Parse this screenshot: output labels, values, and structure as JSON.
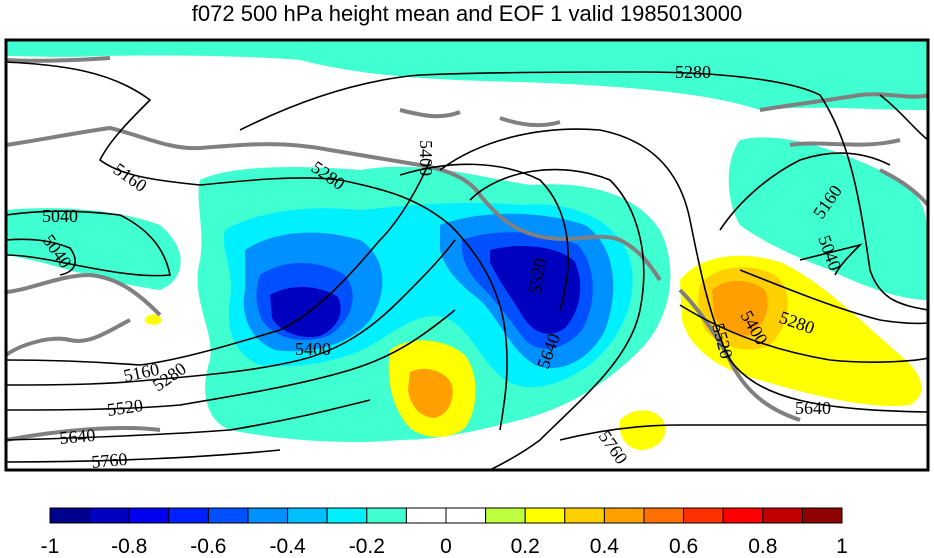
{
  "title": "f072 500 hPa height mean and EOF 1 valid 1985013000",
  "colorbar": {
    "colors": [
      "#00008f",
      "#0000bf",
      "#0000ef",
      "#0020ff",
      "#0050ff",
      "#0090ff",
      "#00c0ff",
      "#00f0ff",
      "#40ffd0",
      "#ffffff",
      "#ffffff",
      "#c0ff40",
      "#ffff00",
      "#ffd000",
      "#ffa000",
      "#ff7000",
      "#ff3000",
      "#ff0000",
      "#c00000",
      "#8f0000"
    ],
    "tick_labels": [
      "-1",
      "-0.8",
      "-0.6",
      "-0.4",
      "-0.2",
      "0",
      "0.2",
      "0.4",
      "0.6",
      "0.8",
      "1"
    ]
  },
  "contour_labels": [
    "5280",
    "5160",
    "5040",
    "5280",
    "5400",
    "5160",
    "5040",
    "5040",
    "5400",
    "5160",
    "5280",
    "5520",
    "5640",
    "5760",
    "5520",
    "5400",
    "5280",
    "5400",
    "5520",
    "5640",
    "5760",
    "5640"
  ],
  "colors": {
    "coast": "#808080",
    "contour": "#000000",
    "frame": "#000000"
  }
}
